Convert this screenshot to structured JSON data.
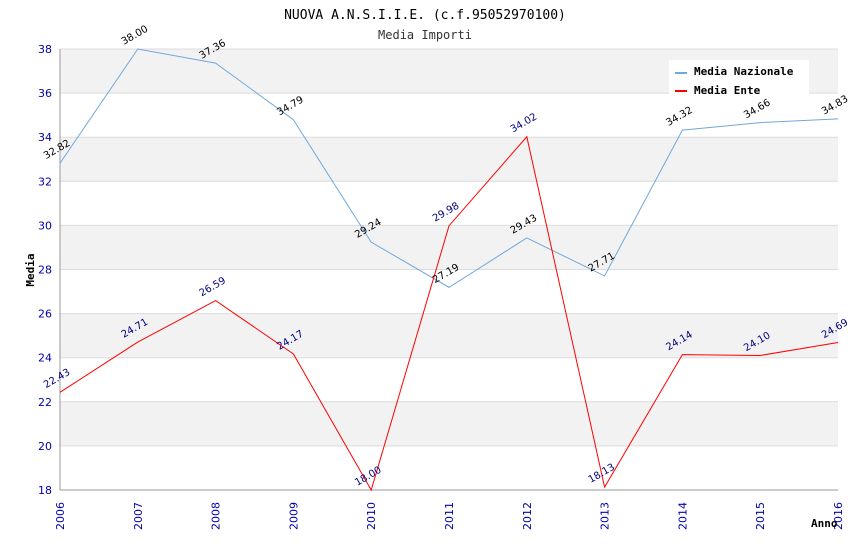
{
  "chart_data": {
    "type": "line",
    "title": "NUOVA A.N.S.I.I.E. (c.f.95052970100)",
    "subtitle": "Media Importi",
    "xlabel": "Anno",
    "ylabel": "Media",
    "ylim": [
      18,
      38
    ],
    "yticks": [
      "18",
      "20",
      "22",
      "24",
      "26",
      "28",
      "30",
      "32",
      "34",
      "36",
      "38"
    ],
    "categories": [
      "2006",
      "2007",
      "2008",
      "2009",
      "2010",
      "2011",
      "2012",
      "2013",
      "2014",
      "2015",
      "2016"
    ],
    "series": [
      {
        "name": "Media Nazionale",
        "color": "#6fa8dc",
        "values": [
          32.82,
          38.0,
          37.36,
          34.79,
          29.24,
          27.19,
          29.43,
          27.71,
          34.32,
          34.66,
          34.83
        ],
        "labels": [
          "32.82",
          "38.00",
          "37.36",
          "34.79",
          "29.24",
          "27.19",
          "29.43",
          "27.71",
          "34.32",
          "34.66",
          "34.83"
        ]
      },
      {
        "name": "Media Ente",
        "color": "#ff0000",
        "values": [
          22.43,
          24.71,
          26.59,
          24.17,
          18.0,
          29.98,
          34.02,
          18.13,
          24.14,
          24.1,
          24.69
        ],
        "labels": [
          "22.43",
          "24.71",
          "26.59",
          "24.17",
          "18.00",
          "29.98",
          "34.02",
          "18.13",
          "24.14",
          "24.10",
          "24.69"
        ]
      }
    ],
    "grid": true,
    "legend_position": "top-right"
  }
}
